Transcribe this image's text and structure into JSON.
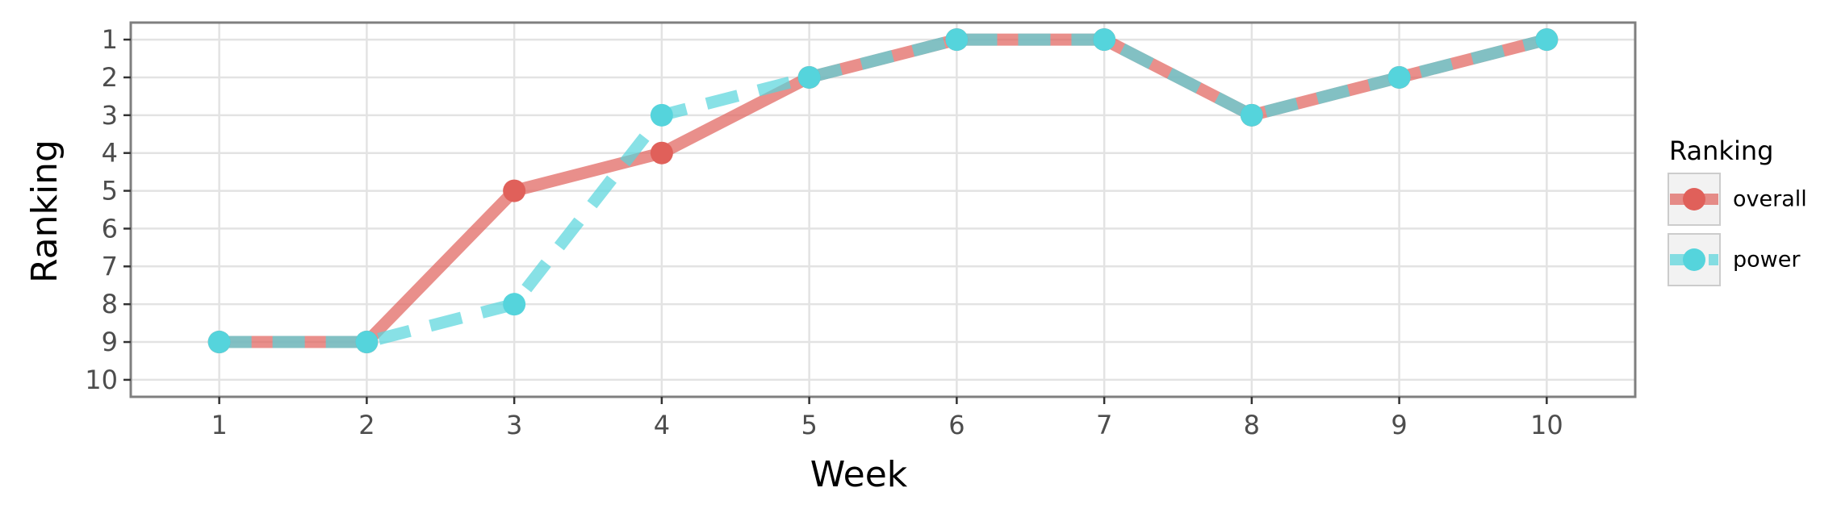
{
  "chart_data": {
    "type": "line",
    "x": [
      1,
      2,
      3,
      4,
      5,
      6,
      7,
      8,
      9,
      10
    ],
    "series": [
      {
        "name": "overall",
        "values": [
          9,
          9,
          5,
          4,
          2,
          1,
          1,
          3,
          2,
          1
        ],
        "color": "#E0605A",
        "line_style": "solid"
      },
      {
        "name": "power",
        "values": [
          9,
          9,
          8,
          3,
          2,
          1,
          1,
          3,
          2,
          1
        ],
        "color": "#55D4DC",
        "line_style": "dashed"
      }
    ],
    "title": "",
    "xlabel": "Week",
    "ylabel": "Ranking",
    "xlim": [
      0.4,
      10.6
    ],
    "ylim": [
      10.45,
      0.55
    ],
    "y_reversed": true,
    "x_ticks": [
      1,
      2,
      3,
      4,
      5,
      6,
      7,
      8,
      9,
      10
    ],
    "y_ticks": [
      1,
      2,
      3,
      4,
      5,
      6,
      7,
      8,
      9,
      10
    ],
    "grid": true,
    "legend": {
      "title": "Ranking",
      "position": "right"
    }
  }
}
